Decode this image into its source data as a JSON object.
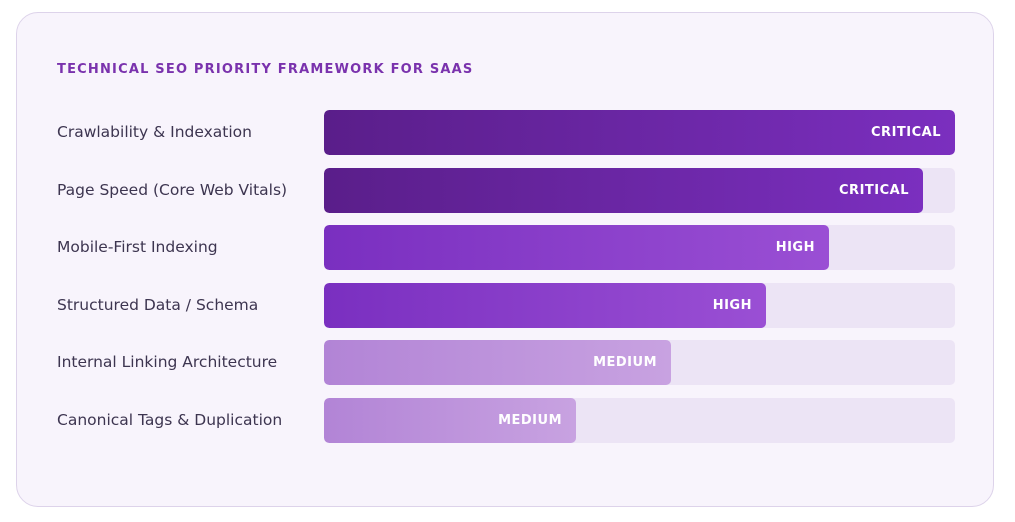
{
  "chart_data": {
    "type": "bar",
    "orientation": "horizontal",
    "title": "TECHNICAL SEO PRIORITY FRAMEWORK FOR SAAS",
    "categories": [
      "Crawlability & Indexation",
      "Page Speed (Core Web Vitals)",
      "Mobile-First Indexing",
      "Structured Data / Schema",
      "Internal Linking Architecture",
      "Canonical Tags & Duplication"
    ],
    "values": [
      100,
      95,
      80,
      70,
      55,
      40
    ],
    "value_unit": "percent of full bar",
    "data_labels": [
      "CRITICAL",
      "CRITICAL",
      "HIGH",
      "HIGH",
      "MEDIUM",
      "MEDIUM"
    ],
    "xlim": [
      0,
      100
    ],
    "grid": false,
    "colors": {
      "CRITICAL": [
        "#5a1e8a",
        "#7b2fbf"
      ],
      "HIGH": [
        "#7a2fc0",
        "#9a4fd4"
      ],
      "MEDIUM": [
        "#b284d6",
        "#c8a2e1"
      ],
      "track": "#ece4f5",
      "title": "#7a32ad",
      "label": "#3d3550"
    }
  }
}
